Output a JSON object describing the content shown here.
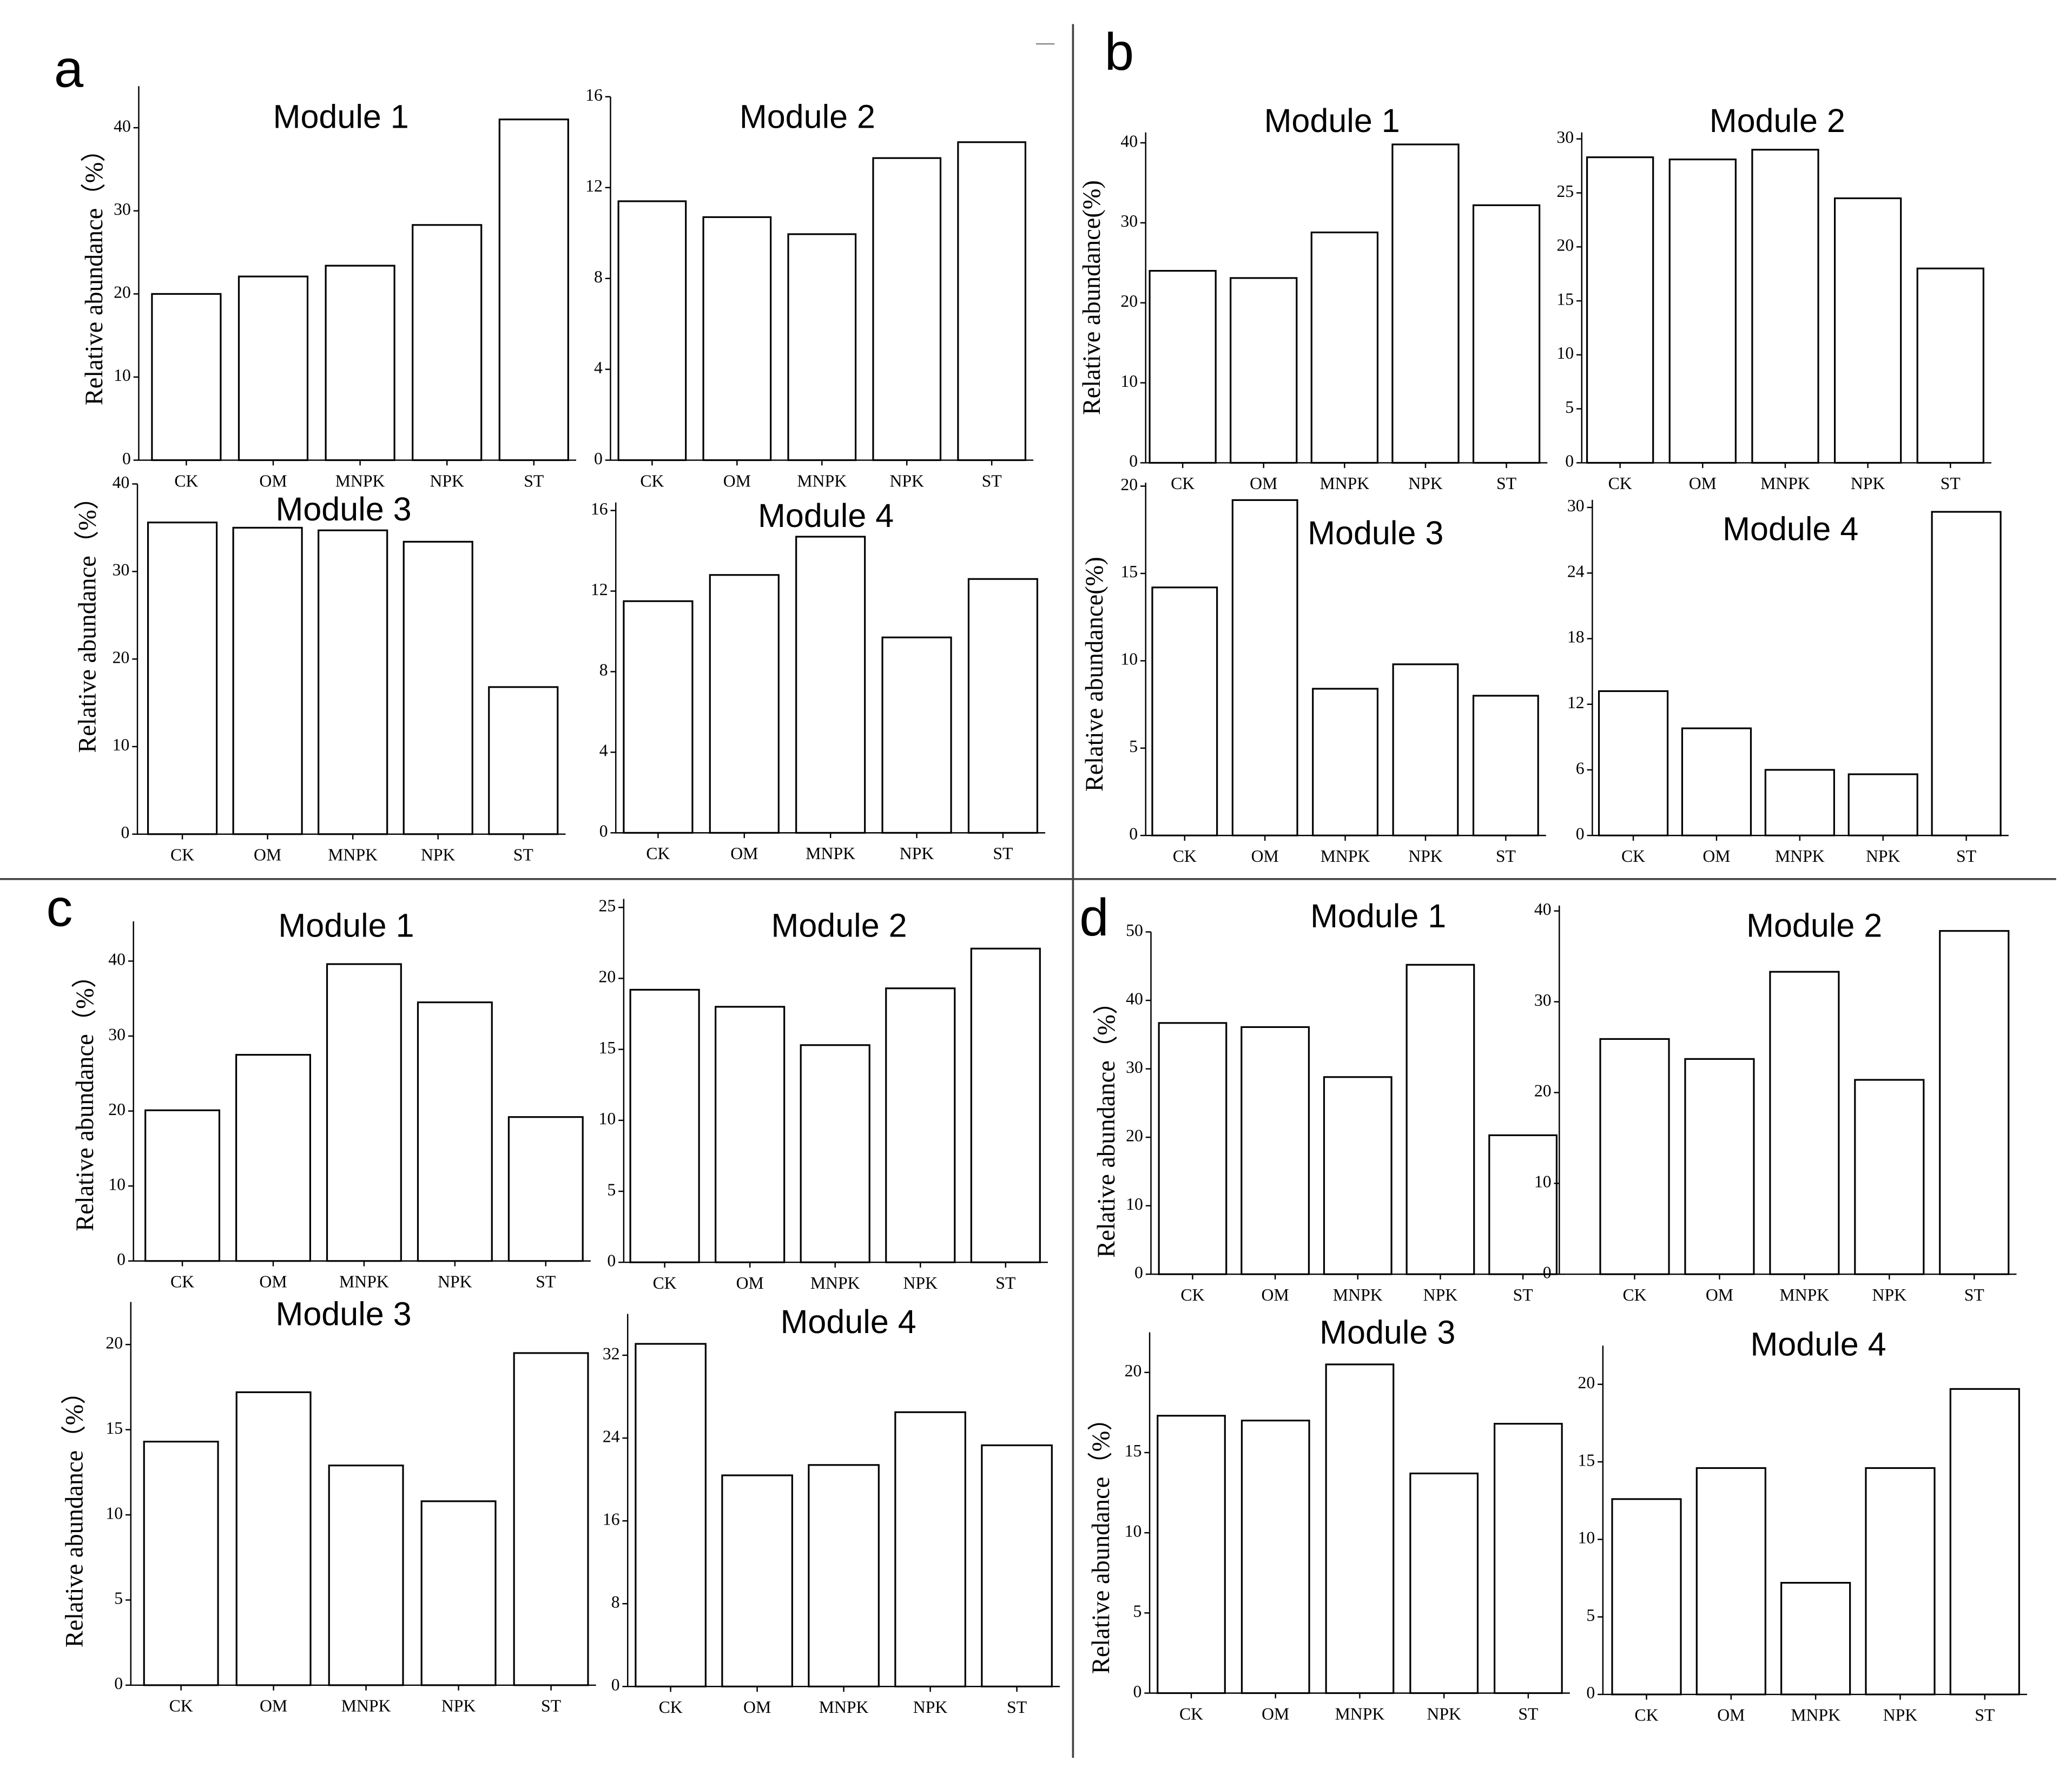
{
  "panel_labels": [
    "a",
    "b",
    "c",
    "d"
  ],
  "chart_data": [
    {
      "type": "bar",
      "title": "Module 1",
      "ylabel": "Relative abundance（%）",
      "categories": [
        "CK",
        "OM",
        "MNPK",
        "NPK",
        "ST"
      ],
      "values": [
        20,
        22.1,
        23.4,
        28.3,
        41
      ],
      "color": "#ffffff",
      "edgecolor": "#000000",
      "ylim": [
        0,
        45
      ],
      "yticks": [
        0,
        10,
        20,
        30,
        40
      ]
    },
    {
      "type": "bar",
      "title": "Module 2",
      "categories": [
        "CK",
        "OM",
        "MNPK",
        "NPK",
        "ST"
      ],
      "values": [
        11.4,
        10.7,
        9.95,
        13.3,
        14.0
      ],
      "color": "#ffffff",
      "edgecolor": "#000000",
      "ylim": [
        0,
        16
      ],
      "yticks": [
        0,
        4,
        8,
        12,
        16
      ]
    },
    {
      "type": "bar",
      "title": "Module 3",
      "ylabel": "Relative abundance（%）",
      "categories": [
        "CK",
        "OM",
        "MNPK",
        "NPK",
        "ST"
      ],
      "values": [
        35.6,
        35.0,
        34.7,
        33.4,
        16.8
      ],
      "color": "#ffffff",
      "edgecolor": "#000000",
      "ylim": [
        0,
        40
      ],
      "yticks": [
        0,
        10,
        20,
        30,
        40
      ]
    },
    {
      "type": "bar",
      "title": "Module 4",
      "categories": [
        "CK",
        "OM",
        "MNPK",
        "NPK",
        "ST"
      ],
      "values": [
        11.5,
        12.8,
        14.7,
        9.7,
        12.6
      ],
      "color": "#ffffff",
      "edgecolor": "#000000",
      "ylim": [
        0,
        16.4
      ],
      "yticks": [
        0,
        4,
        8,
        12,
        16
      ]
    },
    {
      "type": "bar",
      "title": "Module 1",
      "ylabel": "Relative abundance(%)",
      "categories": [
        "CK",
        "OM",
        "MNPK",
        "NPK",
        "ST"
      ],
      "values": [
        24.0,
        23.1,
        28.8,
        39.8,
        32.2
      ],
      "color": "#ffffff",
      "edgecolor": "#000000",
      "ylim": [
        0,
        41.3
      ],
      "yticks": [
        0,
        10,
        20,
        30,
        40
      ]
    },
    {
      "type": "bar",
      "title": "Module 2",
      "categories": [
        "CK",
        "OM",
        "MNPK",
        "NPK",
        "ST"
      ],
      "values": [
        28.3,
        28.1,
        29.0,
        24.5,
        18.0
      ],
      "color": "#ffffff",
      "edgecolor": "#000000",
      "ylim": [
        0,
        30.6
      ],
      "yticks": [
        0,
        5,
        10,
        15,
        20,
        25,
        30
      ]
    },
    {
      "type": "bar",
      "title": "Module 3",
      "ylabel": "Relative abundance(%)",
      "categories": [
        "CK",
        "OM",
        "MNPK",
        "NPK",
        "ST"
      ],
      "values": [
        14.2,
        19.2,
        8.4,
        9.8,
        8.0
      ],
      "color": "#ffffff",
      "edgecolor": "#000000",
      "ylim": [
        0,
        20.2
      ],
      "yticks": [
        0,
        5,
        10,
        15,
        20
      ]
    },
    {
      "type": "bar",
      "title": "Module 4",
      "categories": [
        "CK",
        "OM",
        "MNPK",
        "NPK",
        "ST"
      ],
      "values": [
        13.2,
        9.8,
        6.0,
        5.6,
        29.6
      ],
      "color": "#ffffff",
      "edgecolor": "#000000",
      "ylim": [
        0,
        30.7
      ],
      "yticks": [
        0,
        6,
        12,
        18,
        24,
        30
      ]
    },
    {
      "type": "bar",
      "title": "Module 1",
      "ylabel": "Relative abundance（%）",
      "categories": [
        "CK",
        "OM",
        "MNPK",
        "NPK",
        "ST"
      ],
      "values": [
        20.1,
        27.5,
        39.6,
        34.5,
        19.2
      ],
      "color": "#ffffff",
      "edgecolor": "#000000",
      "ylim": [
        0,
        45.3
      ],
      "yticks": [
        0,
        10,
        20,
        30,
        40
      ]
    },
    {
      "type": "bar",
      "title": "Module 2",
      "categories": [
        "CK",
        "OM",
        "MNPK",
        "NPK",
        "ST"
      ],
      "values": [
        19.2,
        18.0,
        15.3,
        19.3,
        22.1
      ],
      "color": "#ffffff",
      "edgecolor": "#000000",
      "ylim": [
        0,
        25.6
      ],
      "yticks": [
        0,
        5,
        10,
        15,
        20,
        25
      ]
    },
    {
      "type": "bar",
      "title": "Module 3",
      "ylabel": "Relative abundance（%）",
      "categories": [
        "CK",
        "OM",
        "MNPK",
        "NPK",
        "ST"
      ],
      "values": [
        14.3,
        17.2,
        12.9,
        10.8,
        19.5
      ],
      "color": "#ffffff",
      "edgecolor": "#000000",
      "ylim": [
        0,
        22.5
      ],
      "yticks": [
        0,
        5,
        10,
        15,
        20
      ]
    },
    {
      "type": "bar",
      "title": "Module 4",
      "categories": [
        "CK",
        "OM",
        "MNPK",
        "NPK",
        "ST"
      ],
      "values": [
        33.1,
        20.4,
        21.4,
        26.5,
        23.3
      ],
      "color": "#ffffff",
      "edgecolor": "#000000",
      "ylim": [
        0,
        36
      ],
      "yticks": [
        0,
        8,
        16,
        24,
        32
      ]
    },
    {
      "type": "bar",
      "title": "Module 1",
      "ylabel": "Relative abundance（%）",
      "categories": [
        "CK",
        "OM",
        "MNPK",
        "NPK",
        "ST"
      ],
      "values": [
        36.7,
        36.1,
        28.8,
        45.2,
        20.3
      ],
      "color": "#ffffff",
      "edgecolor": "#000000",
      "ylim": [
        0,
        50
      ],
      "yticks": [
        0,
        10,
        20,
        30,
        40,
        50
      ]
    },
    {
      "type": "bar",
      "title": "Module 2",
      "categories": [
        "CK",
        "OM",
        "MNPK",
        "NPK",
        "ST"
      ],
      "values": [
        25.9,
        23.7,
        33.3,
        21.4,
        37.8
      ],
      "color": "#ffffff",
      "edgecolor": "#000000",
      "ylim": [
        0,
        40.6
      ],
      "yticks": [
        0,
        10,
        20,
        30,
        40
      ]
    },
    {
      "type": "bar",
      "title": "Module 3",
      "ylabel": "Relative abundance（%）",
      "categories": [
        "CK",
        "OM",
        "MNPK",
        "NPK",
        "ST"
      ],
      "values": [
        17.3,
        17.0,
        20.5,
        13.7,
        16.8
      ],
      "color": "#ffffff",
      "edgecolor": "#000000",
      "ylim": [
        0,
        22.5
      ],
      "yticks": [
        0,
        5,
        10,
        15,
        20
      ]
    },
    {
      "type": "bar",
      "title": "Module 4",
      "categories": [
        "CK",
        "OM",
        "MNPK",
        "NPK",
        "ST"
      ],
      "values": [
        12.6,
        14.6,
        7.2,
        14.6,
        19.7
      ],
      "color": "#ffffff",
      "edgecolor": "#000000",
      "ylim": [
        0,
        22.5
      ],
      "yticks": [
        0,
        5,
        10,
        15,
        20
      ]
    }
  ]
}
